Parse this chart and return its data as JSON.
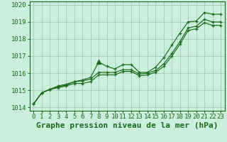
{
  "title": "Graphe pression niveau de la mer (hPa)",
  "bg_color": "#cceedd",
  "grid_color": "#aaccbb",
  "line_color": "#1a6b1a",
  "marker_color": "#1a6b1a",
  "xlim": [
    -0.5,
    23.5
  ],
  "ylim": [
    1013.8,
    1020.2
  ],
  "ytick_vals": [
    1014,
    1015,
    1016,
    1017,
    1018,
    1019,
    1020
  ],
  "xtick_vals": [
    0,
    1,
    2,
    3,
    4,
    5,
    6,
    7,
    8,
    9,
    10,
    11,
    12,
    13,
    14,
    15,
    16,
    17,
    18,
    19,
    20,
    21,
    22,
    23
  ],
  "series1": [
    1014.2,
    1014.85,
    1015.05,
    1015.25,
    1015.35,
    1015.5,
    1015.6,
    1015.75,
    1016.65,
    1016.4,
    1016.25,
    1016.5,
    1016.5,
    1016.05,
    1016.05,
    1016.35,
    1016.9,
    1017.65,
    1018.35,
    1019.0,
    1019.05,
    1019.55,
    1019.45,
    1019.45
  ],
  "series2": [
    1014.2,
    1014.85,
    1015.05,
    1015.2,
    1015.3,
    1015.5,
    1015.55,
    1015.65,
    1016.05,
    1016.05,
    1016.05,
    1016.2,
    1016.2,
    1015.95,
    1016.0,
    1016.15,
    1016.55,
    1017.15,
    1017.85,
    1018.65,
    1018.75,
    1019.15,
    1019.0,
    1019.0
  ],
  "series3": [
    1014.2,
    1014.85,
    1015.05,
    1015.15,
    1015.25,
    1015.4,
    1015.4,
    1015.5,
    1015.9,
    1015.9,
    1015.9,
    1016.1,
    1016.1,
    1015.85,
    1015.9,
    1016.05,
    1016.4,
    1017.0,
    1017.7,
    1018.5,
    1018.6,
    1018.95,
    1018.8,
    1018.8
  ],
  "title_fontsize": 8,
  "tick_fontsize": 6.5
}
